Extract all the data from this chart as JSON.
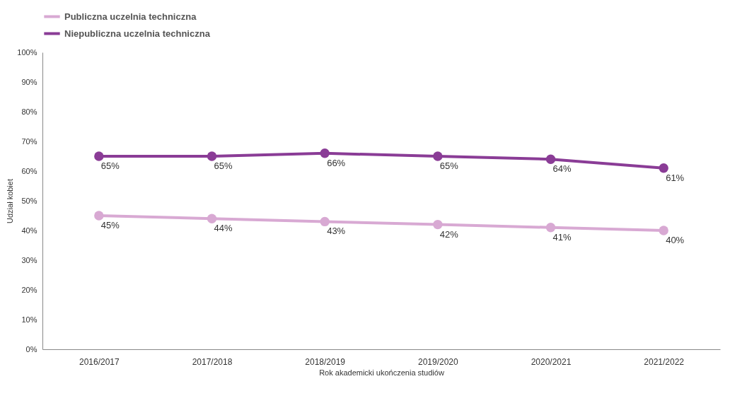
{
  "chart_data": {
    "type": "line",
    "xlabel": "Rok akademicki ukończenia studiów",
    "ylabel": "Udział kobiet",
    "categories": [
      "2016/2017",
      "2017/2018",
      "2018/2019",
      "2019/2020",
      "2020/2021",
      "2021/2022"
    ],
    "series": [
      {
        "name": "Publiczna uczelnia techniczna",
        "color": "#d8a9d3",
        "values": [
          45,
          44,
          43,
          42,
          41,
          40
        ],
        "value_labels": [
          "45%",
          "44%",
          "43%",
          "42%",
          "41%",
          "40%"
        ]
      },
      {
        "name": "Niepubliczna uczelnia techniczna",
        "color": "#8a3c96",
        "values": [
          65,
          65,
          66,
          65,
          64,
          61
        ],
        "value_labels": [
          "65%",
          "65%",
          "66%",
          "65%",
          "64%",
          "61%"
        ]
      }
    ],
    "ylim": [
      0,
      100
    ],
    "yticks": [
      {
        "value": 0,
        "label": "0%"
      },
      {
        "value": 10,
        "label": "10%"
      },
      {
        "value": 20,
        "label": "20%"
      },
      {
        "value": 30,
        "label": "30%"
      },
      {
        "value": 40,
        "label": "40%"
      },
      {
        "value": 50,
        "label": "50%"
      },
      {
        "value": 60,
        "label": "60%"
      },
      {
        "value": 70,
        "label": "70%"
      },
      {
        "value": 80,
        "label": "80%"
      },
      {
        "value": 90,
        "label": "90%"
      },
      {
        "value": 100,
        "label": "100%"
      }
    ],
    "grid": false,
    "legend": "top",
    "marker": "circle",
    "line_style": "solid"
  }
}
